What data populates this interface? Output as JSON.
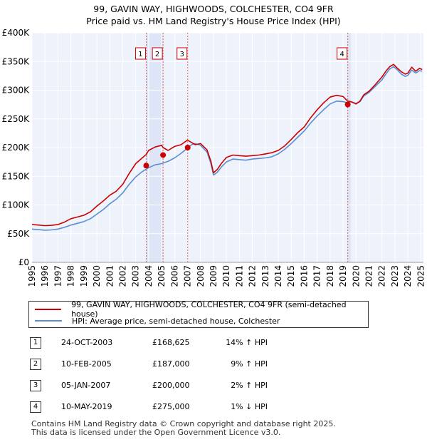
{
  "title_line1": "99, GAVIN WAY, HIGHWOODS, COLCHESTER, CO4 9FR",
  "title_line2": "Price paid vs. HM Land Registry's House Price Index (HPI)",
  "chart_data": {
    "type": "line",
    "title": "Price paid vs. HM Land Registry's House Price Index (HPI)",
    "xlabel": "",
    "ylabel": "",
    "xlim": [
      1995,
      2025.2
    ],
    "ylim": [
      0,
      400000
    ],
    "grid": true,
    "x_ticks": [
      "1995",
      "1996",
      "1997",
      "1998",
      "1999",
      "2000",
      "2001",
      "2002",
      "2003",
      "2004",
      "2005",
      "2006",
      "2007",
      "2008",
      "2009",
      "2010",
      "2011",
      "2012",
      "2013",
      "2014",
      "2015",
      "2016",
      "2017",
      "2018",
      "2019",
      "2020",
      "2021",
      "2022",
      "2023",
      "2024",
      "2025"
    ],
    "y_ticks": [
      {
        "value": 0,
        "label": "£0"
      },
      {
        "value": 50000,
        "label": "£50K"
      },
      {
        "value": 100000,
        "label": "£100K"
      },
      {
        "value": 150000,
        "label": "£150K"
      },
      {
        "value": 200000,
        "label": "£200K"
      },
      {
        "value": 250000,
        "label": "£250K"
      },
      {
        "value": 300000,
        "label": "£300K"
      },
      {
        "value": 350000,
        "label": "£350K"
      },
      {
        "value": 400000,
        "label": "£400K"
      }
    ],
    "shaded_periods": [
      [
        2003.81,
        2005.11
      ],
      [
        2019.35,
        2019.6
      ]
    ],
    "series": [
      {
        "name": "99, GAVIN WAY, HIGHWOODS, COLCHESTER, CO4 9FR (semi-detached house)",
        "color": "#cc0000",
        "x": [
          1995,
          1995.5,
          1996,
          1996.5,
          1997,
          1997.5,
          1998,
          1998.5,
          1999,
          1999.5,
          2000,
          2000.5,
          2001,
          2001.5,
          2002,
          2002.5,
          2003,
          2003.5,
          2003.81,
          2004,
          2004.5,
          2005,
          2005.11,
          2005.5,
          2006,
          2006.5,
          2007,
          2007.3,
          2007.6,
          2008,
          2008.5,
          2008.8,
          2009,
          2009.3,
          2009.6,
          2010,
          2010.5,
          2011,
          2011.5,
          2012,
          2012.5,
          2013,
          2013.5,
          2014,
          2014.5,
          2015,
          2015.5,
          2016,
          2016.5,
          2017,
          2017.5,
          2018,
          2018.5,
          2019,
          2019.35,
          2019.6,
          2020,
          2020.3,
          2020.6,
          2021,
          2021.5,
          2022,
          2022.3,
          2022.6,
          2022.9,
          2023.2,
          2023.5,
          2023.8,
          2024,
          2024.3,
          2024.6,
          2024.9,
          2025.1
        ],
        "y": [
          66000,
          65000,
          64000,
          64500,
          66000,
          70000,
          76000,
          79000,
          82000,
          88000,
          98000,
          107000,
          117000,
          124000,
          136000,
          155000,
          172000,
          182000,
          188000,
          195000,
          201000,
          204000,
          200000,
          195000,
          202000,
          205000,
          213000,
          209000,
          205000,
          207000,
          196000,
          176000,
          156000,
          162000,
          172000,
          183000,
          187000,
          186000,
          185000,
          186000,
          187000,
          189000,
          191000,
          195000,
          203000,
          214000,
          226000,
          236000,
          252000,
          266000,
          278000,
          288000,
          291000,
          289000,
          281000,
          280000,
          276000,
          281000,
          292000,
          298000,
          310000,
          323000,
          333000,
          341000,
          345000,
          338000,
          332000,
          328000,
          330000,
          340000,
          333000,
          338000,
          336000
        ]
      },
      {
        "name": "HPI: Average price, semi-detached house, Colchester",
        "color": "#5b8ed1",
        "x": [
          1995,
          1995.5,
          1996,
          1996.5,
          1997,
          1997.5,
          1998,
          1998.5,
          1999,
          1999.5,
          2000,
          2000.5,
          2001,
          2001.5,
          2002,
          2002.5,
          2003,
          2003.5,
          2004,
          2004.5,
          2005,
          2005.5,
          2006,
          2006.5,
          2007,
          2007.3,
          2007.6,
          2008,
          2008.5,
          2008.8,
          2009,
          2009.3,
          2009.6,
          2010,
          2010.5,
          2011,
          2011.5,
          2012,
          2012.5,
          2013,
          2013.5,
          2014,
          2014.5,
          2015,
          2015.5,
          2016,
          2016.5,
          2017,
          2017.5,
          2018,
          2018.5,
          2019,
          2019.35,
          2019.6,
          2020,
          2020.3,
          2020.6,
          2021,
          2021.5,
          2022,
          2022.3,
          2022.6,
          2022.9,
          2023.2,
          2023.5,
          2023.8,
          2024,
          2024.3,
          2024.6,
          2024.9,
          2025.1
        ],
        "y": [
          58000,
          57000,
          56000,
          56500,
          58000,
          61000,
          65000,
          68000,
          71000,
          76000,
          84000,
          92000,
          102000,
          110000,
          121000,
          136000,
          149000,
          158000,
          165000,
          170000,
          172000,
          176000,
          182000,
          190000,
          199000,
          205000,
          207000,
          204000,
          192000,
          172000,
          152000,
          157000,
          166000,
          175000,
          180000,
          179000,
          178000,
          180000,
          181000,
          182000,
          184000,
          189000,
          197000,
          207000,
          218000,
          229000,
          243000,
          255000,
          266000,
          276000,
          281000,
          280000,
          278000,
          280000,
          277000,
          280000,
          290000,
          296000,
          307000,
          318000,
          328000,
          337000,
          341000,
          335000,
          328000,
          324000,
          326000,
          335000,
          330000,
          334000,
          333000
        ]
      }
    ],
    "sale_points": [
      {
        "label": "1",
        "x": 2003.81,
        "y": 168625
      },
      {
        "label": "2",
        "x": 2005.11,
        "y": 187000
      },
      {
        "label": "3",
        "x": 2007.01,
        "y": 200000
      },
      {
        "label": "4",
        "x": 2019.36,
        "y": 275000
      }
    ]
  },
  "legend": {
    "property_label": "99, GAVIN WAY, HIGHWOODS, COLCHESTER, CO4 9FR (semi-detached house)",
    "hpi_label": "HPI: Average price, semi-detached house, Colchester",
    "property_color": "#cc0000",
    "hpi_color": "#5b8ed1"
  },
  "sales": [
    {
      "num": "1",
      "date": "24-OCT-2003",
      "price": "£168,625",
      "hpi": "14% ↑ HPI"
    },
    {
      "num": "2",
      "date": "10-FEB-2005",
      "price": "£187,000",
      "hpi": "9% ↑ HPI"
    },
    {
      "num": "3",
      "date": "05-JAN-2007",
      "price": "£200,000",
      "hpi": "2% ↑ HPI"
    },
    {
      "num": "4",
      "date": "10-MAY-2019",
      "price": "£275,000",
      "hpi": "1% ↓ HPI"
    }
  ],
  "footer_line1": "Contains HM Land Registry data © Crown copyright and database right 2025.",
  "footer_line2": "This data is licensed under the Open Government Licence v3.0."
}
